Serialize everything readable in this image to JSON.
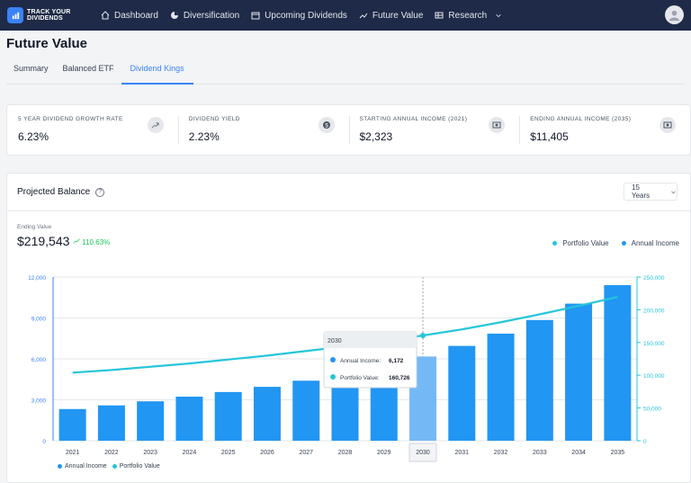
{
  "nav": {
    "logo_line1": "TRACK YOUR",
    "logo_line2": "DIVIDENDS",
    "items": [
      {
        "label": "Dashboard",
        "icon": "home-icon"
      },
      {
        "label": "Diversification",
        "icon": "pie-icon"
      },
      {
        "label": "Upcoming Dividends",
        "icon": "calendar-icon"
      },
      {
        "label": "Future Value",
        "icon": "trend-icon"
      },
      {
        "label": "Research",
        "icon": "table-icon"
      }
    ]
  },
  "page": {
    "title": "Future Value",
    "tabs": [
      {
        "label": "Summary"
      },
      {
        "label": "Balanced ETF"
      },
      {
        "label": "Dividend Kings"
      }
    ]
  },
  "stats": [
    {
      "label": "5 YEAR DIVIDEND GROWTH RATE",
      "value": "6.23%",
      "icon": "trend-up-icon"
    },
    {
      "label": "DIVIDEND YIELD",
      "value": "2.23%",
      "icon": "dollar-icon"
    },
    {
      "label": "STARTING ANNUAL INCOME (2021)",
      "value": "$2,323",
      "icon": "cash-icon"
    },
    {
      "label": "ENDING ANNUAL INCOME (2035)",
      "value": "$11,405",
      "icon": "cash-icon"
    }
  ],
  "projection": {
    "title": "Projected Balance",
    "period": "15 Years",
    "ending_label": "Ending Value",
    "ending_value": "$219,543",
    "ending_change": "110.63%",
    "legend_portfolio": "Portfolio Value",
    "legend_income": "Annual Income"
  },
  "tooltip": {
    "year": "2030",
    "income_label": "Annual Income:",
    "income_value": "6,172",
    "portfolio_label": "Portfolio Value:",
    "portfolio_value": "160,726"
  },
  "colors": {
    "income": "#2196f3",
    "income_highlight": "#74b9f5",
    "portfolio": "#26c6da",
    "nav_bg": "#1e2a47",
    "accent": "#3b82f6",
    "positive": "#22c55e"
  },
  "chart_data": {
    "type": "bar",
    "categories": [
      "2021",
      "2022",
      "2023",
      "2024",
      "2025",
      "2026",
      "2027",
      "2028",
      "2029",
      "2030",
      "2031",
      "2032",
      "2033",
      "2034",
      "2035"
    ],
    "series": [
      {
        "name": "Annual Income",
        "type": "bar",
        "axis": "left",
        "values": [
          2323,
          2590,
          2890,
          3230,
          3570,
          3950,
          4400,
          4850,
          5450,
          6172,
          6950,
          7850,
          8850,
          10050,
          11405
        ]
      },
      {
        "name": "Portfolio Value",
        "type": "line",
        "axis": "right",
        "values": [
          104000,
          108000,
          113000,
          118000,
          124000,
          130000,
          137000,
          144000,
          152000,
          160726,
          170000,
          181000,
          193000,
          206000,
          219543
        ]
      }
    ],
    "left_axis": {
      "min": 0,
      "max": 12000,
      "ticks": [
        "0",
        "3,000",
        "6,000",
        "9,000",
        "12,000"
      ]
    },
    "right_axis": {
      "min": 0,
      "max": 250000,
      "ticks": [
        "0",
        "50,000",
        "100,000",
        "150,000",
        "200,000",
        "250,000"
      ]
    },
    "highlight_category": "2030",
    "legend_position": "bottom-left",
    "grid": true
  }
}
